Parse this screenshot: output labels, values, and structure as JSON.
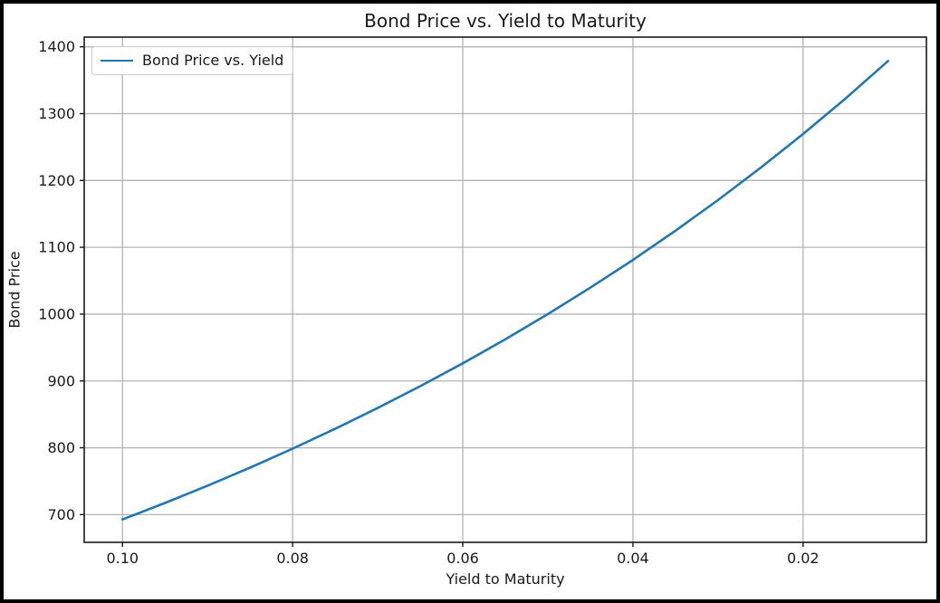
{
  "colors": {
    "line": "#1f77b4",
    "grid": "#b3b3b3",
    "spine": "#1a1a1a",
    "tick": "#1a1a1a",
    "text": "#1a1a1a",
    "legend_border": "#cccccc",
    "figure_border": "#000000",
    "background": "#ffffff"
  },
  "chart_data": {
    "type": "line",
    "title": "Bond Price vs. Yield to Maturity",
    "xlabel": "Yield to Maturity",
    "ylabel": "Bond Price",
    "grid": true,
    "x_axis_inverted": true,
    "legend_position": "upper left",
    "xlim": [
      0.1045,
      0.0055
    ],
    "ylim": [
      658.5,
      1414.5
    ],
    "xticks": [
      0.1,
      0.08,
      0.06,
      0.04,
      0.02
    ],
    "xtick_labels": [
      "0.10",
      "0.08",
      "0.06",
      "0.04",
      "0.02"
    ],
    "yticks": [
      700,
      800,
      900,
      1000,
      1100,
      1200,
      1300,
      1400
    ],
    "ytick_labels": [
      "700",
      "800",
      "900",
      "1000",
      "1100",
      "1200",
      "1300",
      "1400"
    ],
    "series": [
      {
        "name": "Bond Price vs. Yield",
        "color": "#1f77b4",
        "x": [
          0.1,
          0.095,
          0.09,
          0.085,
          0.08,
          0.075,
          0.07,
          0.065,
          0.06,
          0.055,
          0.05,
          0.045,
          0.04,
          0.035,
          0.03,
          0.025,
          0.02,
          0.015,
          0.01
        ],
        "y": [
          692.8,
          717.4,
          743.3,
          770.3,
          798.7,
          828.4,
          859.5,
          892.2,
          926.4,
          962.3,
          1000.0,
          1039.6,
          1081.1,
          1124.8,
          1170.6,
          1218.8,
          1269.5,
          1322.8,
          1378.9
        ]
      }
    ]
  }
}
